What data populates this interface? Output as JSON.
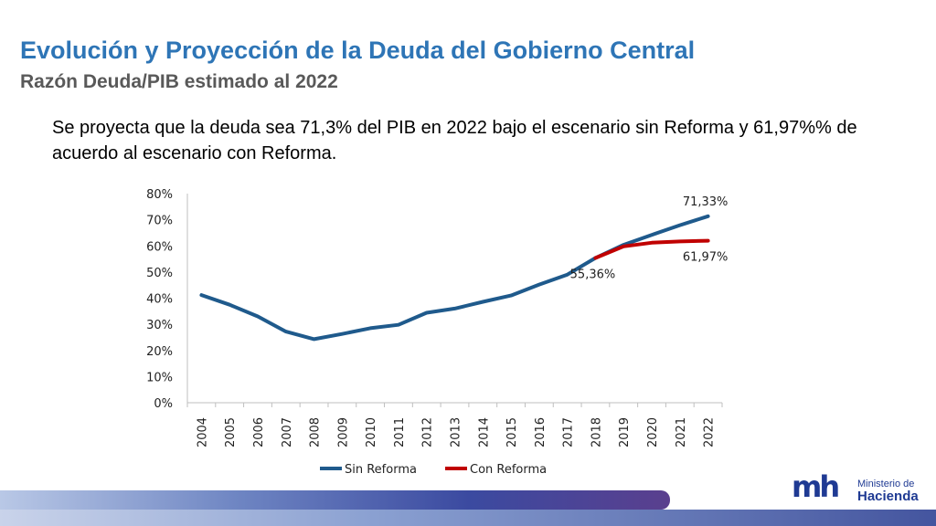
{
  "slide": {
    "title": "Evolución y Proyección de la Deuda del Gobierno Central",
    "subtitle": "Razón Deuda/PIB estimado al 2022",
    "body": "Se proyecta que la deuda sea 71,3% del PIB en 2022 bajo el escenario sin Reforma y 61,97%% de acuerdo al escenario con Reforma."
  },
  "logo": {
    "mark": "mh",
    "line1": "Ministerio de",
    "line2": "Hacienda"
  },
  "colors": {
    "title": "#2e75b6",
    "sin_reforma": "#1f5a8c",
    "con_reforma": "#c00000"
  },
  "chart_data": {
    "type": "line",
    "title": "",
    "xlabel": "",
    "ylabel": "",
    "ylim": [
      0,
      80
    ],
    "yticks": [
      "0%",
      "10%",
      "20%",
      "30%",
      "40%",
      "50%",
      "60%",
      "70%",
      "80%"
    ],
    "categories": [
      "2004",
      "2005",
      "2006",
      "2007",
      "2008",
      "2009",
      "2010",
      "2011",
      "2012",
      "2013",
      "2014",
      "2015",
      "2016",
      "2017",
      "2018",
      "2019",
      "2020",
      "2021",
      "2022"
    ],
    "series": [
      {
        "name": "Sin Reforma",
        "color": "#1f5a8c",
        "values": [
          41.2,
          37.5,
          33.0,
          27.2,
          24.3,
          26.3,
          28.5,
          29.8,
          34.4,
          36.0,
          38.6,
          41.0,
          45.2,
          49.0,
          55.36,
          60.4,
          64.2,
          67.9,
          71.33
        ]
      },
      {
        "name": "Con Reforma",
        "color": "#c00000",
        "values": [
          null,
          null,
          null,
          null,
          null,
          null,
          null,
          null,
          null,
          null,
          null,
          null,
          null,
          null,
          55.36,
          59.8,
          61.2,
          61.7,
          61.97
        ]
      }
    ],
    "annotations": [
      {
        "series": 0,
        "index": 18,
        "text": "71,33%",
        "position": "above"
      },
      {
        "series": 1,
        "index": 18,
        "text": "61,97%",
        "position": "below"
      },
      {
        "series": 0,
        "index": 14,
        "text": "55,36%",
        "position": "below"
      }
    ],
    "legend": [
      "Sin Reforma",
      "Con Reforma"
    ],
    "legend_position": "bottom"
  }
}
